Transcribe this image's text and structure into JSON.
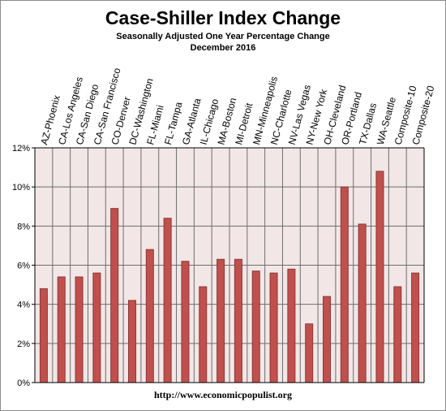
{
  "chart_data": {
    "type": "bar",
    "title": "Case-Shiller Index Change",
    "subtitle": "Seasonally Adjusted One Year Percentage Change",
    "subtitle2": "December 2016",
    "source": "http://www.economicpopulist.org",
    "categories": [
      "AZ-Phoenix",
      "CA-Los Angeles",
      "CA-San Diego",
      "CA-San Francisco",
      "CO-Denver",
      "DC-Washington",
      "FL-Miami",
      "FL-Tampa",
      "GA-Atlanta",
      "IL-Chicago",
      "MA-Boston",
      "MI-Detroit",
      "MN-Minneapolis",
      "NC-Charlotte",
      "NV-Las Vegas",
      "NY-New York",
      "OH-Cleveland",
      "OR-Portland",
      "TX-Dallas",
      "WA-Seattle",
      "Composite-10",
      "Composite-20"
    ],
    "values": [
      4.8,
      5.4,
      5.4,
      5.6,
      8.9,
      4.2,
      6.8,
      8.4,
      6.2,
      4.9,
      6.3,
      6.3,
      5.7,
      5.6,
      5.8,
      3.0,
      4.4,
      10.0,
      8.1,
      10.8,
      4.9,
      5.6
    ],
    "ylim": [
      0,
      12
    ],
    "yticks": [
      "0%",
      "2%",
      "4%",
      "6%",
      "8%",
      "10%",
      "12%"
    ],
    "grid": true,
    "colors": {
      "bar_fill": "#c0504d",
      "bar_edge": "#8c3836",
      "plot_bg": "#f2e6e6",
      "grid": "#6e6e6e"
    }
  }
}
